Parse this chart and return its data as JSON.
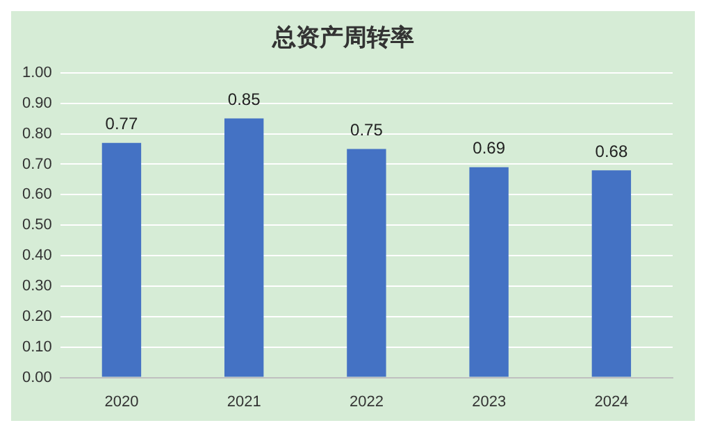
{
  "chart_data": {
    "type": "bar",
    "title": "总资产周转率",
    "categories": [
      "2020",
      "2021",
      "2022",
      "2023",
      "2024"
    ],
    "values": [
      0.77,
      0.85,
      0.75,
      0.69,
      0.68
    ],
    "color": "#4472c4",
    "ylim": [
      0,
      1
    ],
    "yticks": [
      {
        "value": 0,
        "label": "0.00"
      },
      {
        "value": 0.1,
        "label": "0.10"
      },
      {
        "value": 0.2,
        "label": "0.20"
      },
      {
        "value": 0.3,
        "label": "0.30"
      },
      {
        "value": 0.4,
        "label": "0.40"
      },
      {
        "value": 0.5,
        "label": "0.50"
      },
      {
        "value": 0.6,
        "label": "0.60"
      },
      {
        "value": 0.7,
        "label": "0.70"
      },
      {
        "value": 0.8,
        "label": "0.80"
      },
      {
        "value": 0.9,
        "label": "0.90"
      },
      {
        "value": 1,
        "label": "1.00"
      }
    ],
    "grid": "y",
    "data_labels": true
  }
}
